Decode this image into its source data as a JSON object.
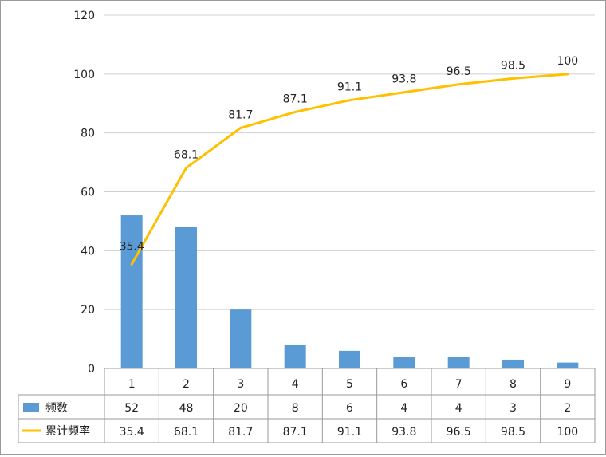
{
  "chart_data": {
    "type": "bar",
    "categories": [
      "1",
      "2",
      "3",
      "4",
      "5",
      "6",
      "7",
      "8",
      "9"
    ],
    "series": [
      {
        "name": "频数",
        "type": "bar",
        "values": [
          52,
          48,
          20,
          8,
          6,
          4,
          4,
          3,
          2
        ],
        "color": "#5b9bd5"
      },
      {
        "name": "累计频率",
        "type": "line",
        "values": [
          35.4,
          68.1,
          81.7,
          87.1,
          91.1,
          93.8,
          96.5,
          98.5,
          100
        ],
        "color": "#ffc000"
      }
    ],
    "yticks": [
      "0",
      "20",
      "40",
      "60",
      "80",
      "100",
      "120"
    ],
    "ylim": [
      0,
      120
    ],
    "grid": true,
    "legend_placement": "data-table",
    "data_table": true
  }
}
